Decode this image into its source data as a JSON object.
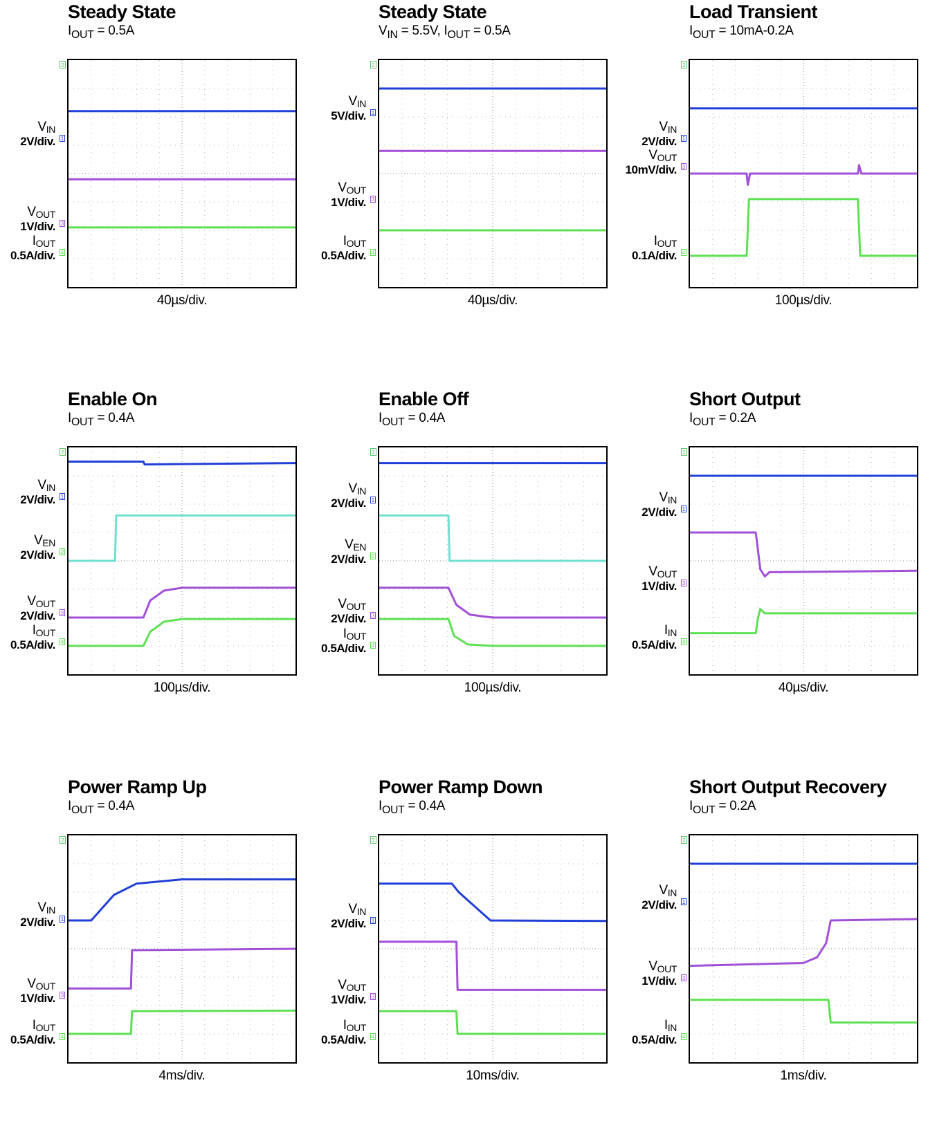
{
  "panels": [
    {
      "title": "Steady State",
      "cond_html": "I<sub>OUT</sub> = 0.5A",
      "xdiv": "40µs/div.",
      "labels": [
        {
          "name": "V<sub>IN</sub>",
          "scale": "2V/div.",
          "y": 112,
          "color": "#1f3fd6",
          "tag": "1"
        },
        {
          "name": "V<sub>OUT</sub>",
          "scale": "1V/div.",
          "y": 235,
          "color": "#a24fd8",
          "tag": "3"
        },
        {
          "name": "I<sub>OUT</sub>",
          "scale": "0.5A/div.",
          "y": 277,
          "color": "#5ee052",
          "tag": "4"
        }
      ]
    },
    {
      "title": "Steady State",
      "cond_html": "V<sub>IN</sub> = 5.5V, I<sub>OUT</sub> = 0.5A",
      "xdiv": "40µs/div.",
      "labels": [
        {
          "name": "V<sub>IN</sub>",
          "scale": "5V/div.",
          "y": 75,
          "color": "#1f3fd6",
          "tag": "1"
        },
        {
          "name": "V<sub>OUT</sub>",
          "scale": "1V/div.",
          "y": 200,
          "color": "#a24fd8",
          "tag": "3"
        },
        {
          "name": "I<sub>OUT</sub>",
          "scale": "0.5A/div.",
          "y": 277,
          "color": "#5ee052",
          "tag": "4"
        }
      ]
    },
    {
      "title": "Load Transient",
      "cond_html": "I<sub>OUT</sub> = 10mA-0.2A",
      "xdiv": "100µs/div.",
      "labels": [
        {
          "name": "V<sub>IN</sub>",
          "scale": "2V/div.",
          "y": 112,
          "color": "#1f3fd6",
          "tag": "1"
        },
        {
          "name": "V<sub>OUT</sub>",
          "scale": "10mV/div.",
          "y": 153,
          "color": "#a24fd8",
          "tag": "3"
        },
        {
          "name": "I<sub>OUT</sub>",
          "scale": "0.1A/div.",
          "y": 277,
          "color": "#5ee052",
          "tag": "4"
        }
      ]
    },
    {
      "title": "Enable On",
      "cond_html": "I<sub>OUT</sub> = 0.4A",
      "xdiv": "100µs/div.",
      "labels": [
        {
          "name": "V<sub>IN</sub>",
          "scale": "2V/div.",
          "y": 70,
          "color": "#1f3fd6",
          "tag": "1"
        },
        {
          "name": "V<sub>EN</sub>",
          "scale": "2V/div.",
          "y": 150,
          "color": "#5ee052",
          "tag": "2"
        },
        {
          "name": "V<sub>OUT</sub>",
          "scale": "2V/div.",
          "y": 238,
          "color": "#a24fd8",
          "tag": "3"
        },
        {
          "name": "I<sub>OUT</sub>",
          "scale": "0.5A/div.",
          "y": 280,
          "color": "#5ee052",
          "tag": "4"
        }
      ]
    },
    {
      "title": "Enable Off",
      "cond_html": "I<sub>OUT</sub> = 0.4A",
      "xdiv": "100µs/div.",
      "labels": [
        {
          "name": "V<sub>IN</sub>",
          "scale": "2V/div.",
          "y": 75,
          "color": "#1f3fd6",
          "tag": "1"
        },
        {
          "name": "V<sub>EN</sub>",
          "scale": "2V/div.",
          "y": 156,
          "color": "#5ee052",
          "tag": "2"
        },
        {
          "name": "V<sub>OUT</sub>",
          "scale": "2V/div.",
          "y": 242,
          "color": "#a24fd8",
          "tag": "3"
        },
        {
          "name": "I<sub>OUT</sub>",
          "scale": "0.5A/div.",
          "y": 285,
          "color": "#5ee052",
          "tag": "4"
        }
      ]
    },
    {
      "title": "Short Output",
      "cond_html": "I<sub>OUT</sub> = 0.2A",
      "xdiv": "40µs/div.",
      "labels": [
        {
          "name": "V<sub>IN</sub>",
          "scale": "2V/div.",
          "y": 88,
          "color": "#1f3fd6",
          "tag": "1"
        },
        {
          "name": "V<sub>OUT</sub>",
          "scale": "1V/div.",
          "y": 195,
          "color": "#a24fd8",
          "tag": "3"
        },
        {
          "name": "I<sub>IN</sub>",
          "scale": "0.5A/div.",
          "y": 280,
          "color": "#5ee052",
          "tag": "4"
        }
      ]
    },
    {
      "title": "Power Ramp Up",
      "cond_html": "I<sub>OUT</sub> = 0.4A",
      "xdiv": "4ms/div.",
      "labels": [
        {
          "name": "V<sub>IN</sub>",
          "scale": "2V/div.",
          "y": 120,
          "color": "#1f3fd6",
          "tag": "1"
        },
        {
          "name": "V<sub>OUT</sub>",
          "scale": "1V/div.",
          "y": 230,
          "color": "#a24fd8",
          "tag": "3"
        },
        {
          "name": "I<sub>OUT</sub>",
          "scale": "0.5A/div.",
          "y": 290,
          "color": "#5ee052",
          "tag": "4"
        }
      ]
    },
    {
      "title": "Power Ramp Down",
      "cond_html": "I<sub>OUT</sub> = 0.4A",
      "xdiv": "10ms/div.",
      "labels": [
        {
          "name": "V<sub>IN</sub>",
          "scale": "2V/div.",
          "y": 122,
          "color": "#1f3fd6",
          "tag": "1"
        },
        {
          "name": "V<sub>OUT</sub>",
          "scale": "1V/div.",
          "y": 232,
          "color": "#a24fd8",
          "tag": "3"
        },
        {
          "name": "I<sub>OUT</sub>",
          "scale": "0.5A/div.",
          "y": 290,
          "color": "#5ee052",
          "tag": "4"
        }
      ]
    },
    {
      "title": "Short Output Recovery",
      "cond_html": "I<sub>OUT</sub> = 0.2A",
      "xdiv": "1ms/div.",
      "labels": [
        {
          "name": "V<sub>IN</sub>",
          "scale": "2V/div.",
          "y": 95,
          "color": "#1f3fd6",
          "tag": "1"
        },
        {
          "name": "V<sub>OUT</sub>",
          "scale": "1V/div.",
          "y": 205,
          "color": "#a24fd8",
          "tag": "3"
        },
        {
          "name": "I<sub>IN</sub>",
          "scale": "0.5A/div.",
          "y": 290,
          "color": "#5ee052",
          "tag": "4"
        }
      ]
    }
  ],
  "chart_data": [
    {
      "type": "line",
      "title": "Steady State",
      "xlabel": "40µs/div.",
      "x_divisions": 10,
      "y_divisions": 8,
      "series": [
        {
          "name": "VIN",
          "color": "#1f3fd6",
          "points": [
            [
              0,
              6.2
            ],
            [
              10,
              6.2
            ]
          ]
        },
        {
          "name": "VOUT",
          "color": "#a24fd8",
          "points": [
            [
              0,
              3.8
            ],
            [
              10,
              3.8
            ]
          ]
        },
        {
          "name": "IOUT",
          "color": "#5ee052",
          "points": [
            [
              0,
              2.1
            ],
            [
              10,
              2.1
            ]
          ]
        }
      ]
    },
    {
      "type": "line",
      "title": "Steady State",
      "xlabel": "40µs/div.",
      "x_divisions": 10,
      "y_divisions": 8,
      "series": [
        {
          "name": "VIN",
          "color": "#1f3fd6",
          "points": [
            [
              0,
              7.0
            ],
            [
              10,
              7.0
            ]
          ]
        },
        {
          "name": "VOUT",
          "color": "#a24fd8",
          "points": [
            [
              0,
              4.8
            ],
            [
              10,
              4.8
            ]
          ]
        },
        {
          "name": "IOUT",
          "color": "#5ee052",
          "points": [
            [
              0,
              2.0
            ],
            [
              10,
              2.0
            ]
          ]
        }
      ]
    },
    {
      "type": "line",
      "title": "Load Transient",
      "xlabel": "100µs/div.",
      "x_divisions": 10,
      "y_divisions": 8,
      "series": [
        {
          "name": "VIN",
          "color": "#1f3fd6",
          "points": [
            [
              0,
              6.3
            ],
            [
              10,
              6.3
            ]
          ]
        },
        {
          "name": "VOUT",
          "color": "#a24fd8",
          "points": [
            [
              0,
              4.0
            ],
            [
              2.5,
              4.0
            ],
            [
              2.55,
              3.6
            ],
            [
              2.65,
              4.0
            ],
            [
              7.4,
              4.0
            ],
            [
              7.45,
              4.3
            ],
            [
              7.55,
              4.0
            ],
            [
              10,
              4.0
            ]
          ]
        },
        {
          "name": "IOUT",
          "color": "#5ee052",
          "points": [
            [
              0,
              1.1
            ],
            [
              2.5,
              1.1
            ],
            [
              2.6,
              3.1
            ],
            [
              7.4,
              3.1
            ],
            [
              7.5,
              1.1
            ],
            [
              10,
              1.1
            ]
          ]
        }
      ]
    },
    {
      "type": "line",
      "title": "Enable On",
      "xlabel": "100µs/div.",
      "x_divisions": 10,
      "y_divisions": 8,
      "series": [
        {
          "name": "VIN",
          "color": "#1f3fd6",
          "points": [
            [
              0,
              7.5
            ],
            [
              3.3,
              7.5
            ],
            [
              3.35,
              7.4
            ],
            [
              10,
              7.45
            ]
          ]
        },
        {
          "name": "VEN",
          "color": "#6fe0d0",
          "points": [
            [
              0,
              4.0
            ],
            [
              2.05,
              4.0
            ],
            [
              2.1,
              5.6
            ],
            [
              10,
              5.6
            ]
          ]
        },
        {
          "name": "VOUT",
          "color": "#a24fd8",
          "points": [
            [
              0,
              2.0
            ],
            [
              3.3,
              2.0
            ],
            [
              3.6,
              2.6
            ],
            [
              4.2,
              2.95
            ],
            [
              5,
              3.05
            ],
            [
              10,
              3.05
            ]
          ]
        },
        {
          "name": "IOUT",
          "color": "#5ee052",
          "points": [
            [
              0,
              1.0
            ],
            [
              3.3,
              1.0
            ],
            [
              3.6,
              1.5
            ],
            [
              4.2,
              1.85
            ],
            [
              5,
              1.95
            ],
            [
              10,
              1.95
            ]
          ]
        }
      ]
    },
    {
      "type": "line",
      "title": "Enable Off",
      "xlabel": "100µs/div.",
      "x_divisions": 10,
      "y_divisions": 8,
      "series": [
        {
          "name": "VIN",
          "color": "#1f3fd6",
          "points": [
            [
              0,
              7.45
            ],
            [
              10,
              7.45
            ]
          ]
        },
        {
          "name": "VEN",
          "color": "#6fe0d0",
          "points": [
            [
              0,
              5.6
            ],
            [
              3.05,
              5.6
            ],
            [
              3.1,
              4.0
            ],
            [
              10,
              4.0
            ]
          ]
        },
        {
          "name": "VOUT",
          "color": "#a24fd8",
          "points": [
            [
              0,
              3.05
            ],
            [
              3.05,
              3.05
            ],
            [
              3.4,
              2.45
            ],
            [
              4.0,
              2.1
            ],
            [
              5,
              2.0
            ],
            [
              10,
              2.0
            ]
          ]
        },
        {
          "name": "IOUT",
          "color": "#5ee052",
          "points": [
            [
              0,
              1.95
            ],
            [
              3.05,
              1.95
            ],
            [
              3.3,
              1.35
            ],
            [
              3.9,
              1.05
            ],
            [
              5,
              1.0
            ],
            [
              10,
              1.0
            ]
          ]
        }
      ]
    },
    {
      "type": "line",
      "title": "Short Output",
      "xlabel": "40µs/div.",
      "x_divisions": 10,
      "y_divisions": 8,
      "series": [
        {
          "name": "VIN",
          "color": "#1f3fd6",
          "points": [
            [
              0,
              7.0
            ],
            [
              10,
              7.0
            ]
          ]
        },
        {
          "name": "VOUT",
          "color": "#a24fd8",
          "points": [
            [
              0,
              5.0
            ],
            [
              2.9,
              5.0
            ],
            [
              3.1,
              3.7
            ],
            [
              3.3,
              3.45
            ],
            [
              3.5,
              3.6
            ],
            [
              10,
              3.65
            ]
          ]
        },
        {
          "name": "IIN",
          "color": "#5ee052",
          "points": [
            [
              0,
              1.45
            ],
            [
              2.9,
              1.45
            ],
            [
              3.0,
              2.0
            ],
            [
              3.1,
              2.3
            ],
            [
              3.3,
              2.15
            ],
            [
              10,
              2.15
            ]
          ]
        }
      ]
    },
    {
      "type": "line",
      "title": "Power Ramp Up",
      "xlabel": "4ms/div.",
      "x_divisions": 10,
      "y_divisions": 8,
      "series": [
        {
          "name": "VIN",
          "color": "#1f3fd6",
          "points": [
            [
              0,
              5.0
            ],
            [
              1.0,
              5.0
            ],
            [
              2.0,
              5.9
            ],
            [
              3.0,
              6.3
            ],
            [
              5,
              6.45
            ],
            [
              10,
              6.45
            ]
          ]
        },
        {
          "name": "VOUT",
          "color": "#a24fd8",
          "points": [
            [
              0,
              2.6
            ],
            [
              2.75,
              2.6
            ],
            [
              2.8,
              3.95
            ],
            [
              10,
              4.0
            ]
          ]
        },
        {
          "name": "IOUT",
          "color": "#5ee052",
          "points": [
            [
              0,
              1.0
            ],
            [
              2.75,
              1.0
            ],
            [
              2.8,
              1.8
            ],
            [
              10,
              1.82
            ]
          ]
        }
      ]
    },
    {
      "type": "line",
      "title": "Power Ramp Down",
      "xlabel": "10ms/div.",
      "x_divisions": 10,
      "y_divisions": 8,
      "series": [
        {
          "name": "VIN",
          "color": "#1f3fd6",
          "points": [
            [
              0,
              6.3
            ],
            [
              3.2,
              6.3
            ],
            [
              3.5,
              6.0
            ],
            [
              4.9,
              5.0
            ],
            [
              10,
              4.98
            ]
          ]
        },
        {
          "name": "VOUT",
          "color": "#a24fd8",
          "points": [
            [
              0,
              4.25
            ],
            [
              3.4,
              4.25
            ],
            [
              3.45,
              2.55
            ],
            [
              10,
              2.55
            ]
          ]
        },
        {
          "name": "IOUT",
          "color": "#5ee052",
          "points": [
            [
              0,
              1.8
            ],
            [
              3.4,
              1.8
            ],
            [
              3.45,
              1.0
            ],
            [
              10,
              1.0
            ]
          ]
        }
      ]
    },
    {
      "type": "line",
      "title": "Short Output Recovery",
      "xlabel": "1ms/div.",
      "x_divisions": 10,
      "y_divisions": 8,
      "series": [
        {
          "name": "VIN",
          "color": "#1f3fd6",
          "points": [
            [
              0,
              7.0
            ],
            [
              10,
              7.0
            ]
          ]
        },
        {
          "name": "VOUT",
          "color": "#a24fd8",
          "points": [
            [
              0,
              3.4
            ],
            [
              5,
              3.5
            ],
            [
              5.6,
              3.7
            ],
            [
              6.0,
              4.2
            ],
            [
              6.2,
              5.0
            ],
            [
              10,
              5.05
            ]
          ]
        },
        {
          "name": "IIN",
          "color": "#5ee052",
          "points": [
            [
              0,
              2.2
            ],
            [
              6.1,
              2.2
            ],
            [
              6.2,
              1.4
            ],
            [
              10,
              1.4
            ]
          ]
        }
      ]
    }
  ]
}
